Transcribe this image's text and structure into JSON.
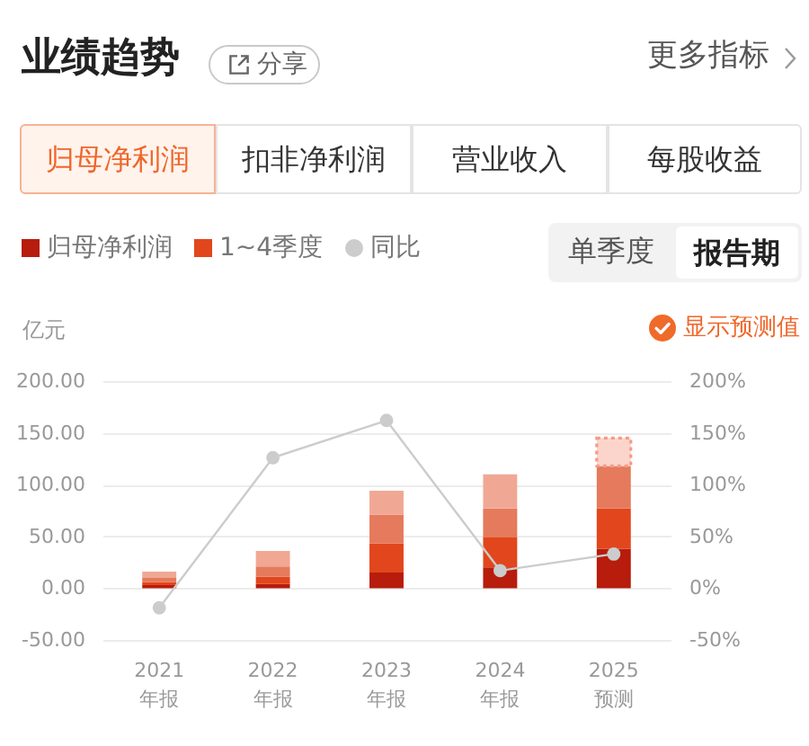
{
  "chart_data": {
    "type": "bar",
    "title": "业绩趋势",
    "ylabel": "亿元",
    "categories": [
      "2021\n年报",
      "2022\n年报",
      "2023\n年报",
      "2024\n年报",
      "2025\n预测"
    ],
    "stacked": true,
    "series": [
      {
        "name": "归母净利润",
        "color": "#b71c0c",
        "values": [
          3,
          4,
          15,
          20,
          38
        ]
      },
      {
        "name": "1~4季度",
        "color": "#e2461c",
        "values": [
          3,
          7,
          28,
          29,
          39
        ]
      },
      {
        "color": "#e57a5c",
        "values": [
          4,
          10,
          28,
          28,
          41
        ]
      },
      {
        "color": "#f0a894",
        "values": [
          6,
          15,
          23,
          33,
          null
        ]
      },
      {
        "color": "#fbd5cc",
        "line_style": "dotted",
        "values": [
          null,
          null,
          null,
          null,
          27
        ]
      },
      {
        "name": "同比",
        "type": "line",
        "axis": "y2",
        "color": "#cccccc",
        "values": [
          -19,
          126,
          162,
          17,
          33
        ]
      }
    ],
    "ylim": [
      -50,
      200
    ],
    "yticks": [
      {
        "value": -50,
        "label": "-50.00"
      },
      {
        "value": 0,
        "label": "0.00"
      },
      {
        "value": 50,
        "label": "50.00"
      },
      {
        "value": 100,
        "label": "100.00"
      },
      {
        "value": 150,
        "label": "150.00"
      },
      {
        "value": 200,
        "label": "200.00"
      }
    ],
    "y2lim": [
      -50,
      200
    ],
    "y2ticks": [
      {
        "value": -50,
        "label": "-50%"
      },
      {
        "value": 0,
        "label": "0%"
      },
      {
        "value": 50,
        "label": "50%"
      },
      {
        "value": 100,
        "label": "100%"
      },
      {
        "value": 150,
        "label": "150%"
      },
      {
        "value": 200,
        "label": "200%"
      }
    ],
    "grid": "y",
    "legend": "top left",
    "marker": "circle",
    "annotations": [
      "分享",
      "更多指标",
      "归母净利润",
      "扣非净利润",
      "营业收入",
      "每股收益",
      "单季度",
      "报告期",
      "显示预测值"
    ]
  }
}
